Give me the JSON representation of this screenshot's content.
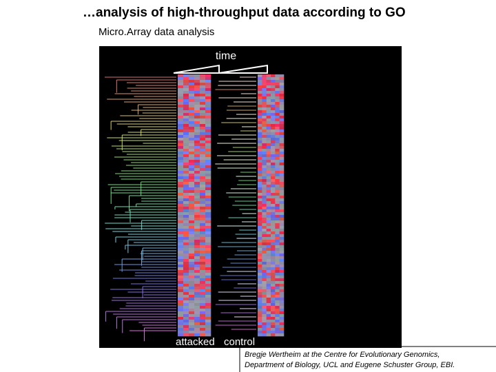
{
  "header": {
    "title": "…analysis of high-throughput data according to GO",
    "subtitle": "Micro.Array data analysis"
  },
  "figure": {
    "time_label": "time",
    "group_labels": [
      "attacked",
      "control"
    ]
  },
  "caption": {
    "lines": [
      "Bregje Wertheim at the Centre for Evolutionary Genomics,",
      "Department of Biology, UCL and Eugene Schuster Group, EBI."
    ]
  }
}
